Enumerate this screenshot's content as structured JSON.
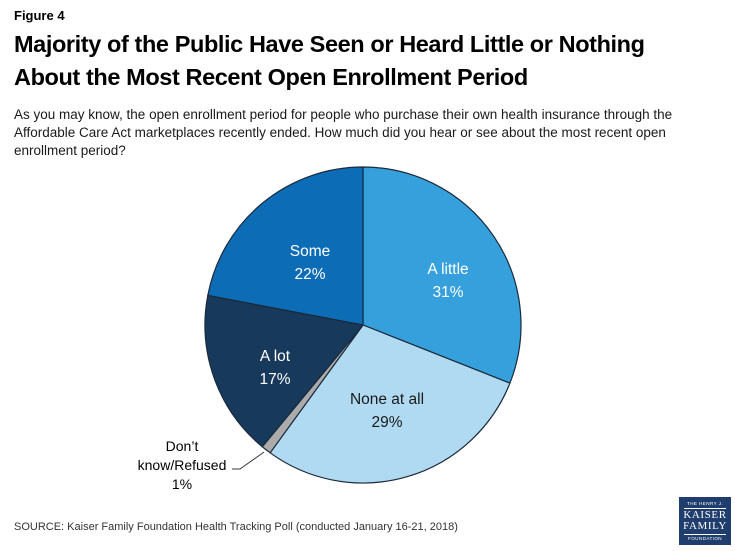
{
  "figure_label": "Figure 4",
  "title_lines": [
    "Majority of the Public Have Seen or Heard Little or Nothing",
    "About the Most Recent Open Enrollment Period"
  ],
  "subtitle": "As you may know, the open enrollment period for people who purchase their own health insurance through the Affordable Care Act marketplaces recently ended. How much did you hear or see about the most recent open enrollment period?",
  "source": "SOURCE: Kaiser Family Foundation Health Tracking Poll (conducted January 16-21, 2018)",
  "logo": {
    "line1": "THE HENRY J.",
    "line2": "KAISER",
    "line3": "FAMILY",
    "line4": "FOUNDATION",
    "bg_color": "#1F3E6D"
  },
  "chart_data": {
    "type": "pie",
    "title": "",
    "start_angle_deg": 0,
    "direction": "clockwise",
    "legend_position": "none",
    "label_style": "inside-except-smallest",
    "outline_color": "#1B2A3B",
    "slices": [
      {
        "label": "A little",
        "value": 31,
        "display": "31%",
        "color": "#35A0DB",
        "text_color": "#FFFFFF"
      },
      {
        "label": "None at all",
        "value": 29,
        "display": "29%",
        "color": "#B0DAF1",
        "text_color": "#1A1A1A"
      },
      {
        "label": "Don’t know/Refused",
        "value": 1,
        "display": "1%",
        "color": "#ABABAB",
        "text_color": "#000000"
      },
      {
        "label": "A lot",
        "value": 17,
        "display": "17%",
        "color": "#17395C",
        "text_color": "#FFFFFF"
      },
      {
        "label": "Some",
        "value": 22,
        "display": "22%",
        "color": "#0C6CB6",
        "text_color": "#FFFFFF"
      }
    ]
  }
}
